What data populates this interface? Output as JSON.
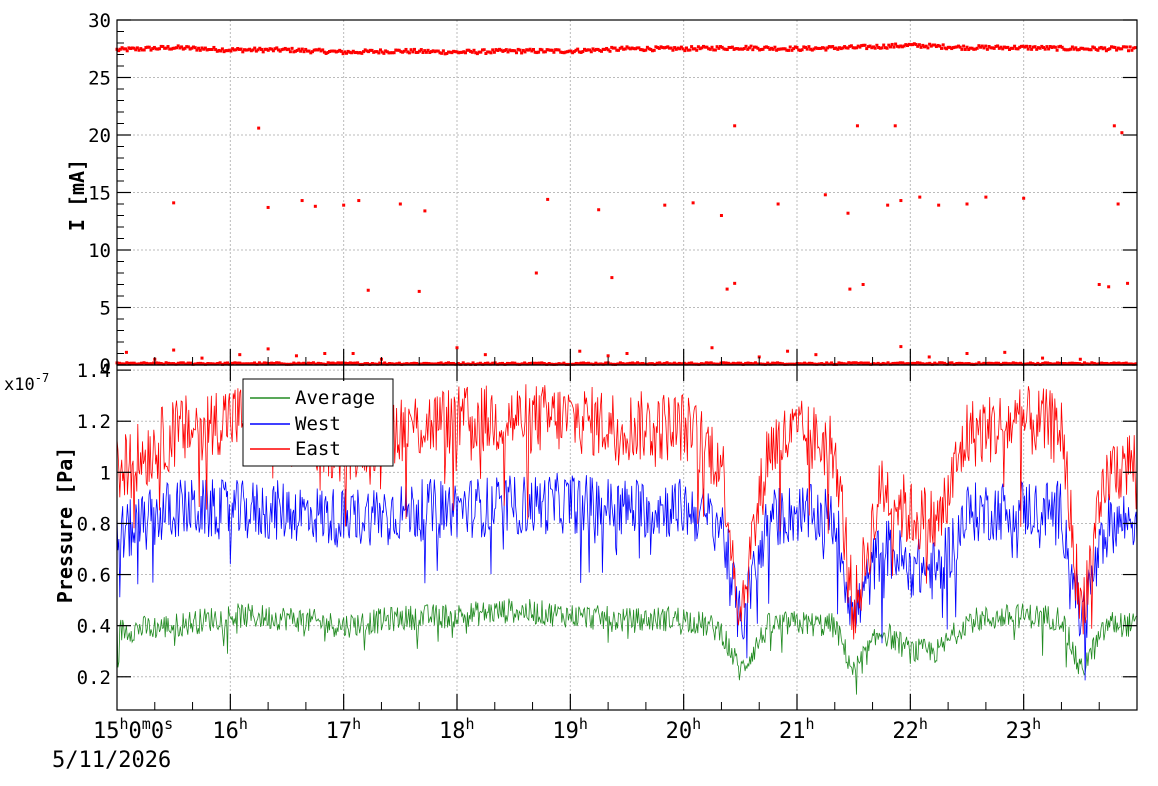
{
  "x_axis": {
    "start_hour_label": "15",
    "start_min_label": "0",
    "start_sec_label": "0",
    "h_sup": "h",
    "m_sup": "m",
    "s_sup": "s",
    "hour_ticks": [
      "16",
      "17",
      "18",
      "19",
      "20",
      "21",
      "22",
      "23"
    ],
    "date_label": "5/11/2026"
  },
  "chart_data": [
    {
      "type": "scatter",
      "title": "",
      "ylabel": "I [mA]",
      "xlabel": "",
      "xlim": [
        "15:00",
        "24:00"
      ],
      "ylim": [
        0,
        30
      ],
      "yticks": [
        "0",
        "5",
        "10",
        "15",
        "20",
        "25",
        "30"
      ],
      "grid": true,
      "series": [
        {
          "color": "#ff0000",
          "baseline_points": [
            [
              "15:00",
              27.4
            ],
            [
              "15:30",
              27.6
            ],
            [
              "16:00",
              27.4
            ],
            [
              "16:30",
              27.4
            ],
            [
              "17:00",
              27.2
            ],
            [
              "17:30",
              27.3
            ],
            [
              "18:00",
              27.2
            ],
            [
              "18:30",
              27.3
            ],
            [
              "19:00",
              27.3
            ],
            [
              "19:30",
              27.5
            ],
            [
              "20:00",
              27.5
            ],
            [
              "20:30",
              27.6
            ],
            [
              "21:00",
              27.5
            ],
            [
              "21:30",
              27.6
            ],
            [
              "22:00",
              27.8
            ],
            [
              "22:30",
              27.6
            ],
            [
              "23:00",
              27.6
            ],
            [
              "23:30",
              27.5
            ],
            [
              "24:00",
              27.5
            ]
          ],
          "outlier_points": [
            [
              "16:15",
              20.6
            ],
            [
              "16:20",
              13.7
            ],
            [
              "15:30",
              14.1
            ],
            [
              "16:38",
              14.3
            ],
            [
              "16:45",
              13.8
            ],
            [
              "17:00",
              13.9
            ],
            [
              "17:08",
              14.3
            ],
            [
              "17:13",
              6.5
            ],
            [
              "17:30",
              14.0
            ],
            [
              "17:43",
              13.4
            ],
            [
              "17:40",
              6.4
            ],
            [
              "18:48",
              14.4
            ],
            [
              "18:42",
              8.0
            ],
            [
              "19:15",
              13.5
            ],
            [
              "19:22",
              7.6
            ],
            [
              "19:50",
              13.9
            ],
            [
              "20:05",
              14.1
            ],
            [
              "20:20",
              13.0
            ],
            [
              "20:23",
              6.6
            ],
            [
              "20:27",
              7.1
            ],
            [
              "20:27",
              20.8
            ],
            [
              "20:50",
              14.0
            ],
            [
              "21:15",
              14.8
            ],
            [
              "21:27",
              13.2
            ],
            [
              "21:28",
              6.6
            ],
            [
              "21:32",
              20.8
            ],
            [
              "21:35",
              7.0
            ],
            [
              "21:52",
              20.8
            ],
            [
              "21:48",
              13.9
            ],
            [
              "21:55",
              14.3
            ],
            [
              "22:05",
              14.6
            ],
            [
              "22:15",
              13.9
            ],
            [
              "22:30",
              14.0
            ],
            [
              "22:40",
              14.6
            ],
            [
              "23:00",
              14.5
            ],
            [
              "23:40",
              7.0
            ],
            [
              "23:45",
              6.8
            ],
            [
              "23:50",
              14.0
            ],
            [
              "23:48",
              20.8
            ],
            [
              "23:52",
              20.2
            ],
            [
              "23:55",
              7.1
            ]
          ],
          "near_zero_points": [
            [
              "15:05",
              1.1
            ],
            [
              "15:20",
              0.5
            ],
            [
              "15:30",
              1.3
            ],
            [
              "15:45",
              0.6
            ],
            [
              "16:05",
              0.9
            ],
            [
              "16:20",
              1.4
            ],
            [
              "16:35",
              0.8
            ],
            [
              "16:50",
              1.0
            ],
            [
              "17:05",
              1.0
            ],
            [
              "17:20",
              0.5
            ],
            [
              "18:00",
              1.5
            ],
            [
              "18:15",
              0.9
            ],
            [
              "19:05",
              1.2
            ],
            [
              "19:20",
              0.8
            ],
            [
              "19:30",
              1.0
            ],
            [
              "20:15",
              1.5
            ],
            [
              "20:40",
              0.7
            ],
            [
              "20:55",
              1.2
            ],
            [
              "21:10",
              0.9
            ],
            [
              "21:55",
              1.6
            ],
            [
              "22:10",
              0.7
            ],
            [
              "22:30",
              1.0
            ],
            [
              "22:50",
              1.1
            ],
            [
              "23:10",
              0.6
            ],
            [
              "23:30",
              0.5
            ]
          ]
        }
      ]
    },
    {
      "type": "line",
      "title": "",
      "ylabel": "Pressure [Pa]",
      "xlabel": "",
      "exponent_label": "x10",
      "exponent_power": "-7",
      "xlim": [
        "15:00",
        "24:00"
      ],
      "ylim": [
        0.07,
        1.42
      ],
      "yticks": [
        "0.2",
        "0.4",
        "0.6",
        "0.8",
        "1",
        "1.2",
        "1.4"
      ],
      "grid": true,
      "legend_position": "top-left",
      "series": [
        {
          "name": "Average",
          "color": "#228b22",
          "points": [
            [
              "15:00",
              0.38
            ],
            [
              "15:30",
              0.4
            ],
            [
              "16:00",
              0.44
            ],
            [
              "16:30",
              0.43
            ],
            [
              "17:00",
              0.4
            ],
            [
              "17:30",
              0.43
            ],
            [
              "18:00",
              0.44
            ],
            [
              "18:30",
              0.46
            ],
            [
              "19:00",
              0.44
            ],
            [
              "19:30",
              0.42
            ],
            [
              "20:00",
              0.43
            ],
            [
              "20:20",
              0.38
            ],
            [
              "20:30",
              0.22
            ],
            [
              "20:45",
              0.4
            ],
            [
              "21:00",
              0.41
            ],
            [
              "21:20",
              0.4
            ],
            [
              "21:30",
              0.22
            ],
            [
              "21:45",
              0.38
            ],
            [
              "22:00",
              0.3
            ],
            [
              "22:15",
              0.3
            ],
            [
              "22:30",
              0.42
            ],
            [
              "23:00",
              0.44
            ],
            [
              "23:20",
              0.43
            ],
            [
              "23:30",
              0.22
            ],
            [
              "23:45",
              0.41
            ],
            [
              "24:00",
              0.4
            ]
          ]
        },
        {
          "name": "West",
          "color": "#0000ff",
          "points": [
            [
              "15:00",
              0.75
            ],
            [
              "15:30",
              0.86
            ],
            [
              "16:00",
              0.85
            ],
            [
              "16:30",
              0.85
            ],
            [
              "17:00",
              0.82
            ],
            [
              "17:30",
              0.85
            ],
            [
              "18:00",
              0.86
            ],
            [
              "18:30",
              0.87
            ],
            [
              "19:00",
              0.88
            ],
            [
              "19:30",
              0.86
            ],
            [
              "20:00",
              0.86
            ],
            [
              "20:20",
              0.8
            ],
            [
              "20:30",
              0.4
            ],
            [
              "20:45",
              0.82
            ],
            [
              "21:00",
              0.84
            ],
            [
              "21:20",
              0.82
            ],
            [
              "21:30",
              0.42
            ],
            [
              "21:45",
              0.72
            ],
            [
              "22:00",
              0.63
            ],
            [
              "22:15",
              0.61
            ],
            [
              "22:30",
              0.84
            ],
            [
              "23:00",
              0.86
            ],
            [
              "23:20",
              0.85
            ],
            [
              "23:30",
              0.42
            ],
            [
              "23:45",
              0.8
            ],
            [
              "24:00",
              0.82
            ]
          ]
        },
        {
          "name": "East",
          "color": "#ff0000",
          "points": [
            [
              "15:00",
              1.0
            ],
            [
              "15:30",
              1.15
            ],
            [
              "16:00",
              1.22
            ],
            [
              "16:30",
              1.16
            ],
            [
              "17:00",
              1.1
            ],
            [
              "17:30",
              1.18
            ],
            [
              "18:00",
              1.2
            ],
            [
              "18:30",
              1.21
            ],
            [
              "19:00",
              1.21
            ],
            [
              "19:30",
              1.18
            ],
            [
              "20:00",
              1.18
            ],
            [
              "20:20",
              1.05
            ],
            [
              "20:30",
              0.45
            ],
            [
              "20:45",
              1.1
            ],
            [
              "21:00",
              1.15
            ],
            [
              "21:20",
              1.1
            ],
            [
              "21:30",
              0.45
            ],
            [
              "21:45",
              0.95
            ],
            [
              "22:00",
              0.83
            ],
            [
              "22:15",
              0.8
            ],
            [
              "22:30",
              1.15
            ],
            [
              "23:00",
              1.2
            ],
            [
              "23:20",
              1.18
            ],
            [
              "23:30",
              0.45
            ],
            [
              "23:45",
              1.0
            ],
            [
              "24:00",
              1.05
            ]
          ]
        }
      ]
    }
  ]
}
